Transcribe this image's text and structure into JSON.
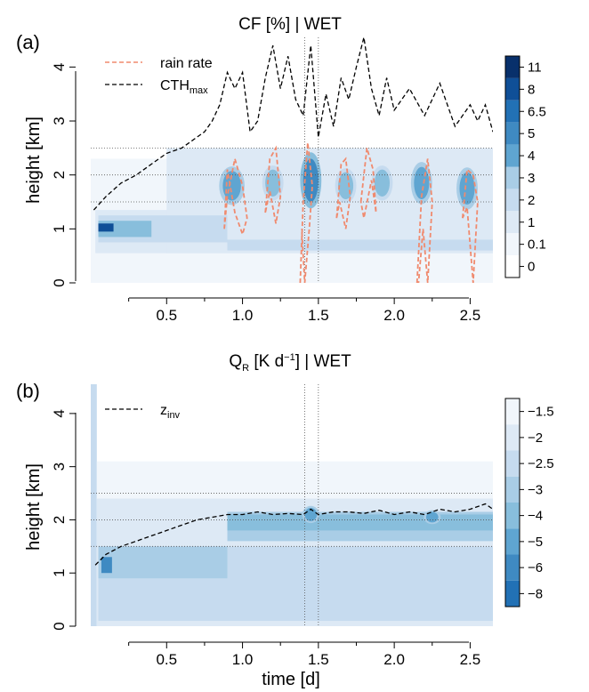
{
  "colors": {
    "blues": [
      "#ffffff",
      "#f1f6fb",
      "#dde9f5",
      "#c6dbef",
      "#a9cde6",
      "#88bedc",
      "#5fa5d1",
      "#3f8ac2",
      "#2271b5",
      "#0f4f97",
      "#08306b"
    ],
    "rain_line": "#f08a6e",
    "cth_line": "#000000",
    "axis_line": "#000000",
    "guide_line": "#555555"
  },
  "chart_data": [
    {
      "id": "a",
      "type": "heatmap",
      "panel_label": "(a)",
      "title": "CF [%] | WET",
      "xlabel": "",
      "ylabel": "height [km]",
      "xlim": [
        0,
        2.65
      ],
      "ylim": [
        0,
        4.55
      ],
      "xticks": [
        0.5,
        1.0,
        1.5,
        2.0,
        2.5
      ],
      "xtick_labels": [
        "0.5",
        "1.0",
        "1.5",
        "2.0",
        "2.5"
      ],
      "yticks": [
        0,
        1,
        2,
        3,
        4
      ],
      "ytick_labels": [
        "0",
        "1",
        "2",
        "3",
        "4"
      ],
      "colorbar": {
        "labels": [
          "11",
          "8",
          "6.5",
          "5",
          "4",
          "3",
          "2",
          "1",
          "0.1",
          "0"
        ],
        "reverse_palette": false
      },
      "guides": {
        "hlines": [
          1.5,
          2.0,
          2.5
        ],
        "vlines": [
          1.41,
          1.5
        ]
      },
      "legend": {
        "position": "top-left",
        "entries": [
          {
            "label": "rain rate",
            "sub": "",
            "style": "rain"
          },
          {
            "label": "CTH",
            "sub": "max",
            "style": "cth"
          }
        ]
      },
      "fields": [
        {
          "x0": 0.0,
          "x1": 2.65,
          "y0": 0.0,
          "y1": 2.3,
          "level": 1
        },
        {
          "x0": 0.03,
          "x1": 2.65,
          "y0": 0.55,
          "y1": 1.35,
          "level": 2
        },
        {
          "x0": 0.5,
          "x1": 2.65,
          "y0": 0.55,
          "y1": 2.5,
          "level": 2
        },
        {
          "x0": 0.05,
          "x1": 0.9,
          "y0": 0.75,
          "y1": 1.25,
          "level": 3
        },
        {
          "x0": 0.9,
          "x1": 2.65,
          "y0": 0.6,
          "y1": 0.8,
          "level": 3
        },
        {
          "x0": 0.05,
          "x1": 0.4,
          "y0": 0.85,
          "y1": 1.15,
          "level": 5
        },
        {
          "x0": 0.05,
          "x1": 0.15,
          "y0": 0.95,
          "y1": 1.1,
          "level": 9
        }
      ],
      "cells": [
        {
          "x": 0.93,
          "y": 1.8,
          "w": 0.12,
          "h": 0.55,
          "level": 6
        },
        {
          "x": 1.2,
          "y": 1.85,
          "w": 0.1,
          "h": 0.5,
          "level": 5
        },
        {
          "x": 1.45,
          "y": 1.9,
          "w": 0.1,
          "h": 0.8,
          "level": 7
        },
        {
          "x": 1.68,
          "y": 1.8,
          "w": 0.1,
          "h": 0.5,
          "level": 5
        },
        {
          "x": 1.92,
          "y": 1.85,
          "w": 0.1,
          "h": 0.5,
          "level": 5
        },
        {
          "x": 2.18,
          "y": 1.85,
          "w": 0.1,
          "h": 0.6,
          "level": 6
        },
        {
          "x": 2.48,
          "y": 1.75,
          "w": 0.1,
          "h": 0.6,
          "level": 6
        }
      ],
      "series": [
        {
          "style": "cth",
          "x": [
            0.02,
            0.1,
            0.2,
            0.3,
            0.4,
            0.5,
            0.6,
            0.7,
            0.75,
            0.8,
            0.85,
            0.9,
            0.95,
            1.0,
            1.05,
            1.1,
            1.15,
            1.2,
            1.25,
            1.3,
            1.35,
            1.4,
            1.45,
            1.5,
            1.55,
            1.6,
            1.65,
            1.7,
            1.75,
            1.8,
            1.85,
            1.9,
            1.95,
            2.0,
            2.1,
            2.2,
            2.3,
            2.4,
            2.5,
            2.55,
            2.6,
            2.65
          ],
          "y": [
            1.35,
            1.6,
            1.85,
            2.0,
            2.2,
            2.4,
            2.5,
            2.7,
            2.8,
            3.0,
            3.3,
            3.9,
            3.6,
            3.9,
            2.8,
            3.0,
            3.8,
            4.4,
            3.6,
            4.2,
            3.4,
            3.1,
            4.4,
            2.7,
            3.5,
            2.9,
            3.8,
            3.4,
            4.0,
            4.55,
            3.6,
            3.1,
            3.8,
            3.2,
            3.6,
            3.1,
            3.7,
            2.9,
            3.3,
            3.0,
            3.3,
            2.8
          ]
        },
        {
          "style": "rain",
          "x": [
            0.88,
            0.9,
            0.95,
            1.0,
            1.03,
            1.0,
            0.95,
            0.9,
            0.88
          ],
          "y": [
            1.0,
            1.6,
            2.3,
            1.8,
            1.2,
            0.9,
            1.3,
            2.1,
            1.0
          ]
        },
        {
          "style": "rain",
          "x": [
            1.15,
            1.18,
            1.22,
            1.25,
            1.22,
            1.18,
            1.15
          ],
          "y": [
            1.3,
            2.3,
            2.5,
            1.6,
            1.1,
            1.7,
            1.3
          ]
        },
        {
          "style": "rain",
          "x": [
            1.38,
            1.4,
            1.43,
            1.46,
            1.44,
            1.41,
            1.39
          ],
          "y": [
            0.0,
            1.5,
            2.6,
            1.8,
            1.0,
            0.0,
            1.0
          ]
        },
        {
          "style": "rain",
          "x": [
            1.62,
            1.65,
            1.68,
            1.71,
            1.68,
            1.64,
            1.62
          ],
          "y": [
            1.2,
            2.2,
            2.3,
            1.6,
            1.0,
            1.5,
            1.2
          ]
        },
        {
          "style": "rain",
          "x": [
            1.78,
            1.82,
            1.86,
            1.88,
            1.85,
            1.8,
            1.78
          ],
          "y": [
            1.5,
            2.5,
            2.1,
            1.3,
            1.9,
            1.2,
            1.5
          ]
        },
        {
          "style": "rain",
          "x": [
            2.15,
            2.18,
            2.22,
            2.25,
            2.22,
            2.19,
            2.16
          ],
          "y": [
            0.0,
            1.6,
            2.3,
            1.5,
            0.0,
            1.0,
            0.0
          ]
        },
        {
          "style": "rain",
          "x": [
            2.45,
            2.48,
            2.52,
            2.55,
            2.52,
            2.48,
            2.45
          ],
          "y": [
            1.2,
            2.1,
            2.0,
            1.5,
            0.0,
            1.4,
            1.2
          ]
        }
      ]
    },
    {
      "id": "b",
      "type": "heatmap",
      "panel_label": "(b)",
      "title": "Q",
      "title_sub": "R",
      "title_rest": " [K d",
      "title_sup": "−1",
      "title_tail": "] | WET",
      "xlabel": "time [d]",
      "ylabel": "height [km]",
      "xlim": [
        0,
        2.65
      ],
      "ylim": [
        0,
        4.55
      ],
      "xticks": [
        0.5,
        1.0,
        1.5,
        2.0,
        2.5
      ],
      "xtick_labels": [
        "0.5",
        "1.0",
        "1.5",
        "2.0",
        "2.5"
      ],
      "yticks": [
        0,
        1,
        2,
        3,
        4
      ],
      "ytick_labels": [
        "0",
        "1",
        "2",
        "3",
        "4"
      ],
      "colorbar": {
        "labels": [
          "−1.5",
          "−2",
          "−2.5",
          "−3",
          "−4",
          "−5",
          "−6",
          "−8"
        ],
        "reverse_palette": true
      },
      "guides": {
        "hlines": [
          1.5,
          2.0,
          2.5
        ],
        "vlines": [
          1.41,
          1.5
        ]
      },
      "legend": {
        "position": "top-left",
        "entries": [
          {
            "label": "z",
            "sub": "inv",
            "style": "cth"
          }
        ]
      },
      "fields": [
        {
          "x0": 0.0,
          "x1": 0.04,
          "y0": 0.0,
          "y1": 4.55,
          "level": 3
        },
        {
          "x0": 0.04,
          "x1": 2.65,
          "y0": 0.0,
          "y1": 3.1,
          "level": 1
        },
        {
          "x0": 0.04,
          "x1": 2.65,
          "y0": 0.0,
          "y1": 2.4,
          "level": 2
        },
        {
          "x0": 0.05,
          "x1": 2.65,
          "y0": 0.1,
          "y1": 1.5,
          "level": 3
        },
        {
          "x0": 0.05,
          "x1": 0.9,
          "y0": 0.9,
          "y1": 1.5,
          "level": 4
        },
        {
          "x0": 0.9,
          "x1": 2.65,
          "y0": 1.6,
          "y1": 2.15,
          "level": 4
        },
        {
          "x0": 0.9,
          "x1": 2.65,
          "y0": 1.8,
          "y1": 2.1,
          "level": 5
        },
        {
          "x0": 0.07,
          "x1": 0.14,
          "y0": 1.0,
          "y1": 1.3,
          "level": 7
        }
      ],
      "cells": [
        {
          "x": 1.45,
          "y": 2.1,
          "w": 0.08,
          "h": 0.25,
          "level": 6
        },
        {
          "x": 2.25,
          "y": 2.05,
          "w": 0.08,
          "h": 0.2,
          "level": 6
        }
      ],
      "series": [
        {
          "style": "cth",
          "x": [
            0.03,
            0.1,
            0.2,
            0.3,
            0.4,
            0.5,
            0.6,
            0.7,
            0.8,
            0.9,
            1.0,
            1.1,
            1.2,
            1.3,
            1.4,
            1.45,
            1.5,
            1.6,
            1.7,
            1.8,
            1.9,
            2.0,
            2.1,
            2.2,
            2.3,
            2.4,
            2.5,
            2.6,
            2.65
          ],
          "y": [
            1.15,
            1.35,
            1.5,
            1.6,
            1.7,
            1.8,
            1.9,
            2.0,
            2.05,
            2.1,
            2.1,
            2.15,
            2.1,
            2.12,
            2.1,
            2.2,
            2.1,
            2.15,
            2.15,
            2.12,
            2.18,
            2.1,
            2.15,
            2.1,
            2.2,
            2.15,
            2.2,
            2.3,
            2.2
          ]
        }
      ]
    }
  ]
}
